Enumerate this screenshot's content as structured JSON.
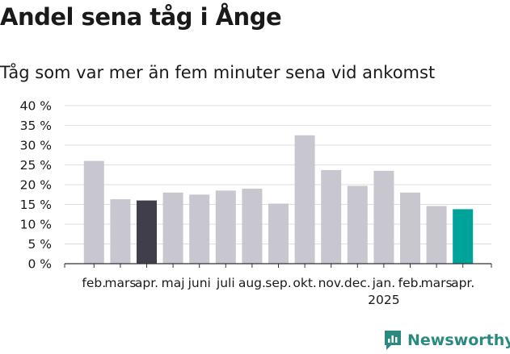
{
  "title": "Andel sena tåg i Ånge",
  "subtitle": "Tåg som var mer än fem minuter sena vid ankomst",
  "brand": {
    "name": "Newsworthy",
    "icon": "newsworthy-logo-icon",
    "color": "#2a8a7f"
  },
  "colors": {
    "default": "#c8c7d0",
    "highlight_dark": "#3f3e4a",
    "highlight_teal": "#00a399",
    "grid": "#dddddd",
    "axis": "#333333"
  },
  "chart_data": {
    "type": "bar",
    "categories": [
      "feb.",
      "mars",
      "apr.",
      "maj",
      "juni",
      "juli",
      "aug.",
      "sep.",
      "okt.",
      "nov.",
      "dec.",
      "jan.",
      "feb.",
      "mars",
      "apr."
    ],
    "year_label": "2025",
    "values": [
      26,
      16.3,
      16,
      18,
      17.5,
      18.5,
      19,
      15.2,
      32.5,
      23.7,
      19.7,
      23.5,
      18,
      14.6,
      13.8
    ],
    "highlight": {
      "2": "highlight_dark",
      "14": "highlight_teal"
    },
    "ylim": [
      0,
      40
    ],
    "yticks": [
      "0 %",
      "5 %",
      "10 %",
      "15 %",
      "20 %",
      "25 %",
      "30 %",
      "35 %",
      "40 %"
    ],
    "ytick_values": [
      0,
      5,
      10,
      15,
      20,
      25,
      30,
      35,
      40
    ],
    "grid": true,
    "xlabel": "",
    "ylabel": ""
  }
}
